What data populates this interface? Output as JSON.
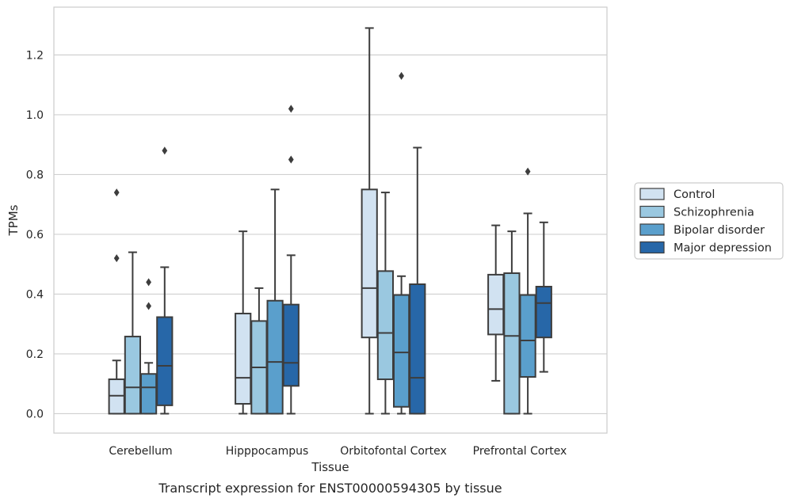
{
  "caption": "Transcript expression for ENST00000594305 by tissue",
  "chart_data": {
    "type": "boxplot",
    "xlabel": "Tissue",
    "ylabel": "TPMs",
    "ylim": [
      -0.065,
      1.36
    ],
    "yticks": [
      0.0,
      0.2,
      0.4,
      0.6,
      0.8,
      1.0,
      1.2
    ],
    "ytick_labels": [
      "0.0",
      "0.2",
      "0.4",
      "0.6",
      "0.8",
      "1.0",
      "1.2"
    ],
    "grid": "horizontal",
    "legend_placement": "right",
    "categories": [
      "Cerebellum",
      "Hipppocampus",
      "Orbitofontal Cortex",
      "Prefrontal Cortex"
    ],
    "series": [
      {
        "name": "Control",
        "color": "#d1e2f1",
        "boxes": [
          {
            "whislo": 0.0,
            "q1": 0.0,
            "med": 0.06,
            "q3": 0.115,
            "whishi": 0.178,
            "fliers": [
              0.74,
              0.52
            ]
          },
          {
            "whislo": 0.0,
            "q1": 0.033,
            "med": 0.12,
            "q3": 0.335,
            "whishi": 0.61,
            "fliers": []
          },
          {
            "whislo": 0.0,
            "q1": 0.255,
            "med": 0.42,
            "q3": 0.75,
            "whishi": 1.29,
            "fliers": []
          },
          {
            "whislo": 0.11,
            "q1": 0.265,
            "med": 0.35,
            "q3": 0.465,
            "whishi": 0.63,
            "fliers": []
          }
        ]
      },
      {
        "name": "Schizophrenia",
        "color": "#9ac8e0",
        "boxes": [
          {
            "whislo": 0.0,
            "q1": 0.0,
            "med": 0.088,
            "q3": 0.258,
            "whishi": 0.54,
            "fliers": []
          },
          {
            "whislo": 0.0,
            "q1": 0.0,
            "med": 0.155,
            "q3": 0.31,
            "whishi": 0.42,
            "fliers": []
          },
          {
            "whislo": 0.0,
            "q1": 0.115,
            "med": 0.27,
            "q3": 0.477,
            "whishi": 0.74,
            "fliers": []
          },
          {
            "whislo": 0.0,
            "q1": 0.0,
            "med": 0.26,
            "q3": 0.47,
            "whishi": 0.61,
            "fliers": []
          }
        ]
      },
      {
        "name": "Bipolar disorder",
        "color": "#5a9fcc",
        "boxes": [
          {
            "whislo": 0.0,
            "q1": 0.0,
            "med": 0.088,
            "q3": 0.133,
            "whishi": 0.17,
            "fliers": [
              0.44,
              0.36
            ]
          },
          {
            "whislo": 0.0,
            "q1": 0.0,
            "med": 0.173,
            "q3": 0.378,
            "whishi": 0.75,
            "fliers": []
          },
          {
            "whislo": 0.0,
            "q1": 0.023,
            "med": 0.205,
            "q3": 0.397,
            "whishi": 0.46,
            "fliers": [
              1.13
            ]
          },
          {
            "whislo": 0.0,
            "q1": 0.123,
            "med": 0.245,
            "q3": 0.397,
            "whishi": 0.67,
            "fliers": [
              0.81
            ]
          }
        ]
      },
      {
        "name": "Major depression",
        "color": "#2767a8",
        "boxes": [
          {
            "whislo": 0.0,
            "q1": 0.028,
            "med": 0.16,
            "q3": 0.323,
            "whishi": 0.49,
            "fliers": [
              0.88
            ]
          },
          {
            "whislo": 0.0,
            "q1": 0.093,
            "med": 0.17,
            "q3": 0.365,
            "whishi": 0.53,
            "fliers": [
              1.02,
              0.85
            ]
          },
          {
            "whislo": 0.0,
            "q1": 0.0,
            "med": 0.12,
            "q3": 0.433,
            "whishi": 0.89,
            "fliers": []
          },
          {
            "whislo": 0.14,
            "q1": 0.255,
            "med": 0.37,
            "q3": 0.425,
            "whishi": 0.64,
            "fliers": []
          }
        ]
      }
    ]
  }
}
